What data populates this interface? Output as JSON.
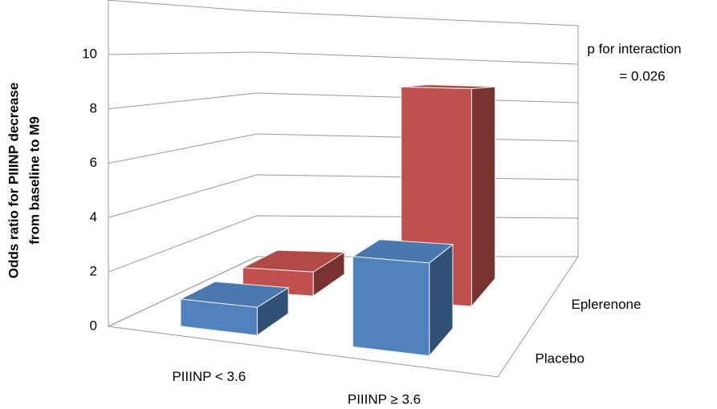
{
  "chart_data": {
    "type": "bar3d",
    "y_label": [
      "Odds ratio for PIIINP decrease",
      "from baseline to M9"
    ],
    "annotation": [
      "p for interaction",
      "= 0.026"
    ],
    "categories": [
      "PIIINP < 3.6",
      "PIIINP ≥ 3.6"
    ],
    "series": [
      {
        "name": "Placebo",
        "color": "#4f81bd",
        "values": [
          1.0,
          3.1
        ]
      },
      {
        "name": "Eplerenone",
        "color": "#c0504d",
        "values": [
          1.0,
          8.8
        ]
      }
    ],
    "ylim": [
      0,
      12
    ],
    "yticks": [
      0,
      2,
      4,
      6,
      8,
      10
    ],
    "grid": true
  }
}
